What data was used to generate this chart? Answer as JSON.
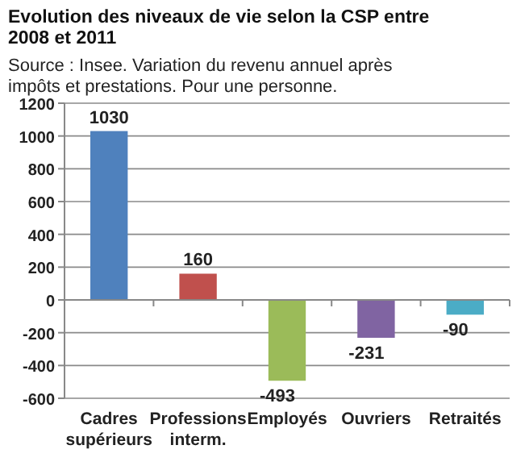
{
  "chart_data": {
    "type": "bar",
    "title": "Evolution des niveaux de vie selon la CSP entre 2008 et 2011",
    "subtitle": "Source : Insee. Variation du revenu annuel après impôts et prestations. Pour une personne.",
    "categories": [
      "Cadres supérieurs",
      "Professions interm.",
      "Employés",
      "Ouvriers",
      "Retraités"
    ],
    "values": [
      1030,
      160,
      -493,
      -231,
      -90
    ],
    "colors": [
      "#4f81bd",
      "#c0504d",
      "#9bbb59",
      "#8064a2",
      "#4bacc6"
    ],
    "ylim": [
      -600,
      1200
    ],
    "yticks": [
      -600,
      -400,
      -200,
      0,
      200,
      400,
      600,
      800,
      1000,
      1200
    ],
    "grid": "y",
    "data_labels": true
  }
}
